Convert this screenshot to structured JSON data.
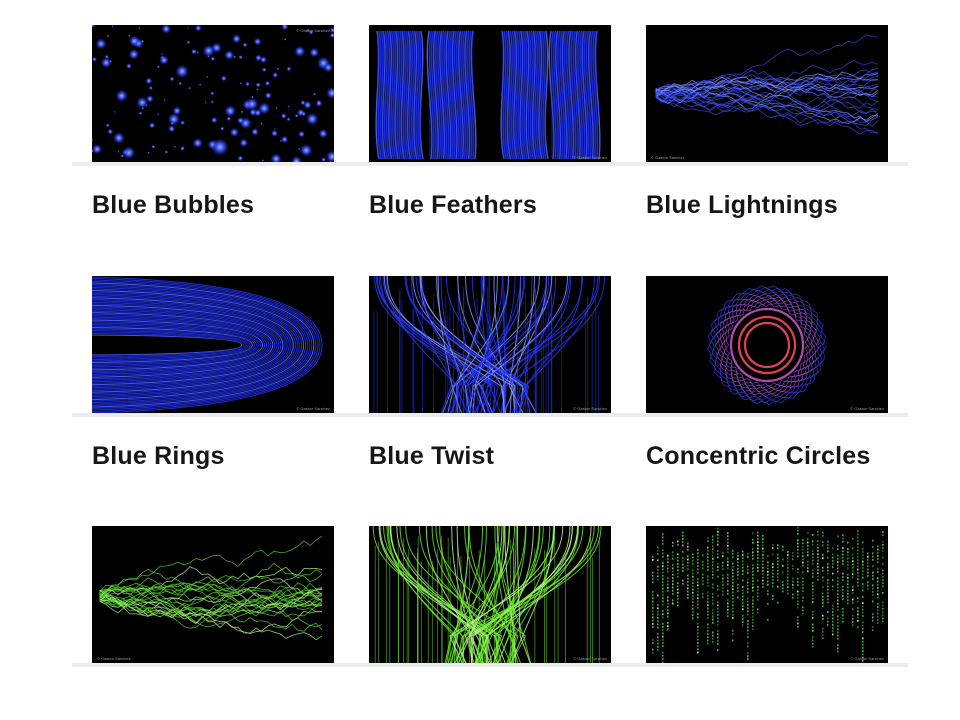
{
  "gallery": {
    "items": [
      {
        "title": "Blue Bubbles",
        "credit": "© Gaston Sanchez",
        "thumbnail": "blue-bubbles"
      },
      {
        "title": "Blue Feathers",
        "credit": "© Gaston Sanchez",
        "thumbnail": "blue-feathers"
      },
      {
        "title": "Blue Lightnings",
        "credit": "© Gaston Sanchez",
        "thumbnail": "blue-lightnings"
      },
      {
        "title": "Blue Rings",
        "credit": "© Gaston Sanchez",
        "thumbnail": "blue-rings"
      },
      {
        "title": "Blue Twist",
        "credit": "© Gaston Sanchez",
        "thumbnail": "blue-twist"
      },
      {
        "title": "Concentric Circles",
        "credit": "© Gaston Sanchez",
        "thumbnail": "concentric-circles"
      },
      {
        "title": "",
        "credit": "© Gaston Sanchez",
        "thumbnail": "green-lightnings"
      },
      {
        "title": "",
        "credit": "© Gaston Sanchez",
        "thumbnail": "green-twist"
      },
      {
        "title": "",
        "credit": "© Gaston Sanchez",
        "thumbnail": "green-matrix-rain"
      }
    ]
  },
  "colors": {
    "page_background": "#ffffff",
    "thumbnail_background": "#000000",
    "title_text": "#161616",
    "divider": "#ececec",
    "blue_accent": "#2a3cff",
    "green_accent": "#7dff3a",
    "ring_red": "#e0405a",
    "ring_purple": "#9a4cd8"
  }
}
